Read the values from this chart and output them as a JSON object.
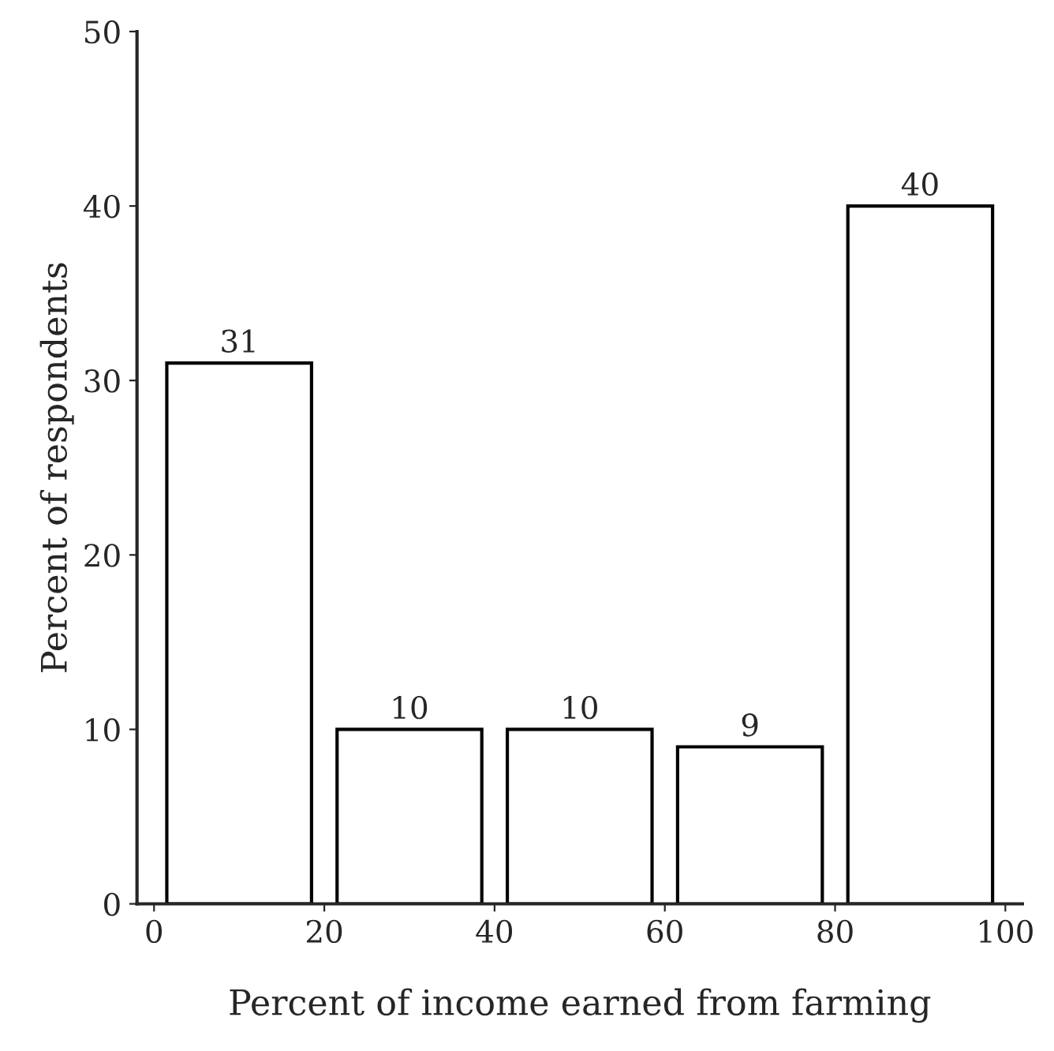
{
  "chart_data": {
    "type": "histogram",
    "xlabel": "Percent of income earned from farming",
    "ylabel": "Percent of respondents",
    "bins": [
      0,
      20,
      40,
      60,
      80,
      100
    ],
    "values": [
      31,
      10,
      10,
      9,
      40
    ],
    "color": "#ffffff",
    "xlim": [
      -2,
      102
    ],
    "xticks": [
      0,
      20,
      40,
      60,
      80,
      100
    ],
    "ylim": [
      0,
      50
    ],
    "yticks": [
      0,
      10,
      20,
      30,
      40,
      50
    ],
    "data_labels": true,
    "grid": false,
    "legend": false
  }
}
